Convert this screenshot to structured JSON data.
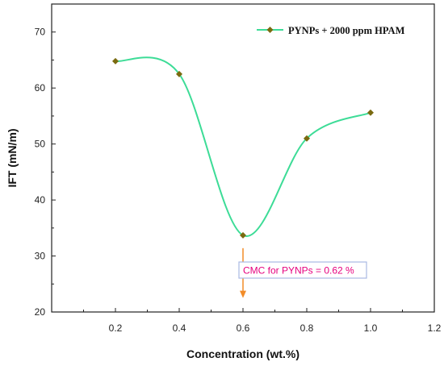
{
  "chart_data": {
    "type": "line",
    "xlabel": "Concentration (wt.%)",
    "ylabel": "IFT (mN/m)",
    "xlim": [
      0.0,
      1.2
    ],
    "ylim": [
      20,
      75
    ],
    "x_ticks": [
      0.2,
      0.4,
      0.6,
      0.8,
      1.0,
      1.2
    ],
    "x_tick_labels": [
      "0.2",
      "0.4",
      "0.6",
      "0.8",
      "1.0",
      "1.2"
    ],
    "y_ticks": [
      20,
      30,
      40,
      50,
      60,
      70
    ],
    "y_tick_labels": [
      "20",
      "30",
      "40",
      "50",
      "60",
      "70"
    ],
    "grid": false,
    "legend_position": "top-right",
    "series": [
      {
        "name": "PYNPs + 2000 ppm HPAM",
        "x": [
          0.2,
          0.4,
          0.6,
          0.8,
          1.0
        ],
        "y": [
          64.8,
          62.5,
          33.7,
          51.0,
          55.6
        ],
        "line_color": "#3ddc97",
        "marker_color": "#7a6a10",
        "marker": "diamond"
      }
    ],
    "annotation": {
      "text": "CMC for PYNPs = 0.62 %",
      "text_color": "#e6007e",
      "box_color": "#a9b9e3",
      "arrow_color": "#f28c28",
      "arrow_x": 0.6,
      "arrow_from_y": 31.4,
      "arrow_to_y": 22.5
    }
  }
}
